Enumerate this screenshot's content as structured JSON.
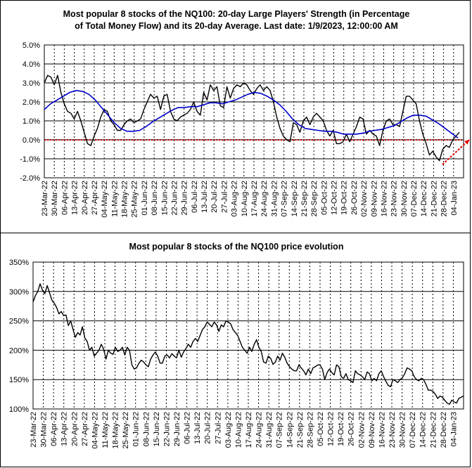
{
  "chart_data": [
    {
      "type": "line",
      "title_lines": [
        "Most popular 8 stocks of the NQ100: 20-day Large Players' Strength (in Percentage",
        "of Total Money Flow) and its 20-day Average. Last date: 1/9/2023, 12:00:00 AM"
      ],
      "y_ticks": [
        "5.0%",
        "4.0%",
        "3.0%",
        "2.0%",
        "1.0%",
        "0.0%",
        "-1.0%",
        "-2.0%"
      ],
      "ylim": [
        -2.0,
        5.0
      ],
      "x_ticks": [
        "23-Mar-22",
        "30-Mar-22",
        "06-Apr-22",
        "13-Apr-22",
        "20-Apr-22",
        "27-Apr-22",
        "04-May-22",
        "11-May-22",
        "18-May-22",
        "25-May-22",
        "01-Jun-22",
        "08-Jun-22",
        "15-Jun-22",
        "22-Jun-22",
        "29-Jun-22",
        "06-Jul-22",
        "13-Jul-22",
        "20-Jul-22",
        "27-Jul-22",
        "03-Aug-22",
        "10-Aug-22",
        "17-Aug-22",
        "24-Aug-22",
        "31-Aug-22",
        "07-Sep-22",
        "14-Sep-22",
        "21-Sep-22",
        "28-Sep-22",
        "05-Oct-22",
        "12-Oct-22",
        "19-Oct-22",
        "26-Oct-22",
        "02-Nov-22",
        "09-Nov-22",
        "16-Nov-22",
        "23-Nov-22",
        "30-Nov-22",
        "07-Dec-22",
        "14-Dec-22",
        "21-Dec-22",
        "28-Dec-22",
        "04-Jan-23"
      ],
      "grid": "horizontal solid, vertical dashed",
      "zero_line_color": "#c00000",
      "trend_arrow_color": "#e00000",
      "series": [
        {
          "color": "#000000",
          "values": [
            3.0,
            3.4,
            3.3,
            2.9,
            3.4,
            2.5,
            1.9,
            1.5,
            1.4,
            1.1,
            1.5,
            1.0,
            0.4,
            -0.2,
            -0.3,
            0.2,
            0.6,
            1.2,
            1.6,
            1.5,
            1.0,
            0.8,
            0.5,
            0.5,
            0.8,
            1.0,
            1.1,
            0.9,
            1.0,
            1.1,
            1.6,
            2.0,
            2.4,
            2.2,
            2.3,
            1.6,
            2.3,
            2.4,
            1.5,
            1.1,
            1.0,
            1.2,
            1.3,
            1.4,
            1.6,
            2.0,
            1.5,
            1.3,
            2.5,
            2.1,
            2.9,
            2.6,
            2.8,
            1.8,
            1.7,
            2.8,
            2.2,
            2.7,
            2.9,
            2.8,
            3.0,
            2.9,
            2.6,
            2.4,
            2.7,
            2.9,
            2.6,
            2.8,
            2.6,
            2.0,
            1.2,
            0.6,
            0.2,
            0.0,
            -0.1,
            0.9,
            0.8,
            0.4,
            1.0,
            1.2,
            0.8,
            1.2,
            1.4,
            1.2,
            1.0,
            0.5,
            0.2,
            0.5,
            -0.2,
            -0.2,
            -0.1,
            0.3,
            -0.1,
            0.3,
            0.7,
            1.2,
            1.1,
            0.3,
            0.5,
            0.3,
            0.2,
            -0.3,
            0.5,
            1.0,
            1.1,
            0.8,
            0.8,
            0.7,
            1.5,
            2.3,
            2.3,
            2.1,
            1.9,
            1.0,
            0.3,
            -0.2,
            -0.8,
            -0.6,
            -0.9,
            -1.1,
            -0.5,
            -0.3,
            -0.4,
            0.0,
            0.2,
            0.4
          ],
          "last_date": "2023-01-09"
        },
        {
          "color": "#0000cc",
          "values": [
            1.6,
            1.9,
            2.1,
            2.3,
            2.5,
            2.6,
            2.55,
            2.4,
            2.1,
            1.7,
            1.3,
            0.9,
            0.6,
            0.45,
            0.45,
            0.5,
            0.7,
            0.95,
            1.15,
            1.35,
            1.55,
            1.7,
            1.7,
            1.75,
            1.75,
            1.85,
            1.95,
            1.95,
            1.9,
            2.0,
            2.1,
            2.25,
            2.4,
            2.5,
            2.45,
            2.3,
            2.1,
            1.85,
            1.5,
            1.1,
            0.8,
            0.6,
            0.55,
            0.5,
            0.45,
            0.45,
            0.4,
            0.3,
            0.3,
            0.3,
            0.35,
            0.45,
            0.5,
            0.55,
            0.65,
            0.75,
            0.95,
            1.15,
            1.3,
            1.3,
            1.25,
            1.05,
            0.85,
            0.6,
            0.35,
            0.1
          ]
        }
      ]
    },
    {
      "type": "line",
      "title": "Most popular 8 stocks of the NQ100 price evolution",
      "y_ticks": [
        "350%",
        "300%",
        "250%",
        "200%",
        "150%",
        "100%"
      ],
      "ylim": [
        100,
        350
      ],
      "x_ticks": [
        "23-Mar-22",
        "30-Mar-22",
        "06-Apr-22",
        "13-Apr-22",
        "20-Apr-22",
        "27-Apr-22",
        "04-May-22",
        "11-May-22",
        "18-May-22",
        "25-May-22",
        "01-Jun-22",
        "08-Jun-22",
        "15-Jun-22",
        "22-Jun-22",
        "29-Jun-22",
        "06-Jul-22",
        "13-Jul-22",
        "20-Jul-22",
        "27-Jul-22",
        "03-Aug-22",
        "10-Aug-22",
        "17-Aug-22",
        "24-Aug-22",
        "31-Aug-22",
        "07-Sep-22",
        "14-Sep-22",
        "21-Sep-22",
        "28-Sep-22",
        "05-Oct-22",
        "12-Oct-22",
        "19-Oct-22",
        "26-Oct-22",
        "02-Nov-22",
        "09-Nov-22",
        "16-Nov-22",
        "23-Nov-22",
        "30-Nov-22",
        "07-Dec-22",
        "14-Dec-22",
        "21-Dec-22",
        "28-Dec-22",
        "04-Jan-23"
      ],
      "grid": "horizontal solid, vertical dashed",
      "series": [
        {
          "color": "#000000",
          "values": [
            282,
            293,
            300,
            313,
            302,
            296,
            310,
            298,
            285,
            280,
            273,
            262,
            266,
            259,
            260,
            242,
            250,
            235,
            222,
            230,
            226,
            240,
            221,
            215,
            200,
            205,
            190,
            195,
            200,
            210,
            202,
            185,
            200,
            195,
            193,
            205,
            198,
            200,
            205,
            192,
            205,
            200,
            175,
            168,
            170,
            178,
            183,
            180,
            175,
            172,
            185,
            192,
            197,
            190,
            178,
            178,
            190,
            192,
            187,
            194,
            190,
            187,
            200,
            188,
            197,
            203,
            210,
            205,
            215,
            220,
            215,
            225,
            235,
            240,
            248,
            244,
            240,
            248,
            243,
            232,
            243,
            240,
            250,
            248,
            245,
            235,
            230,
            225,
            215,
            205,
            200,
            195,
            205,
            198,
            210,
            218,
            205,
            198,
            180,
            178,
            190,
            186,
            176,
            180,
            190,
            183,
            195,
            188,
            178,
            172,
            168,
            165,
            165,
            175,
            170,
            165,
            158,
            168,
            160,
            170,
            172,
            175,
            175,
            168,
            150,
            162,
            168,
            162,
            158,
            175,
            172,
            155,
            152,
            160,
            150,
            148,
            145,
            165,
            160,
            158,
            155,
            150,
            163,
            160,
            148,
            152,
            148,
            160,
            165,
            155,
            147,
            140,
            138,
            150,
            148,
            145,
            150,
            153,
            160,
            170,
            168,
            165,
            155,
            150,
            148,
            152,
            150,
            142,
            132,
            132,
            130,
            125,
            118,
            122,
            120,
            115,
            110,
            108,
            115,
            112,
            110,
            118,
            120,
            122
          ]
        }
      ]
    }
  ]
}
